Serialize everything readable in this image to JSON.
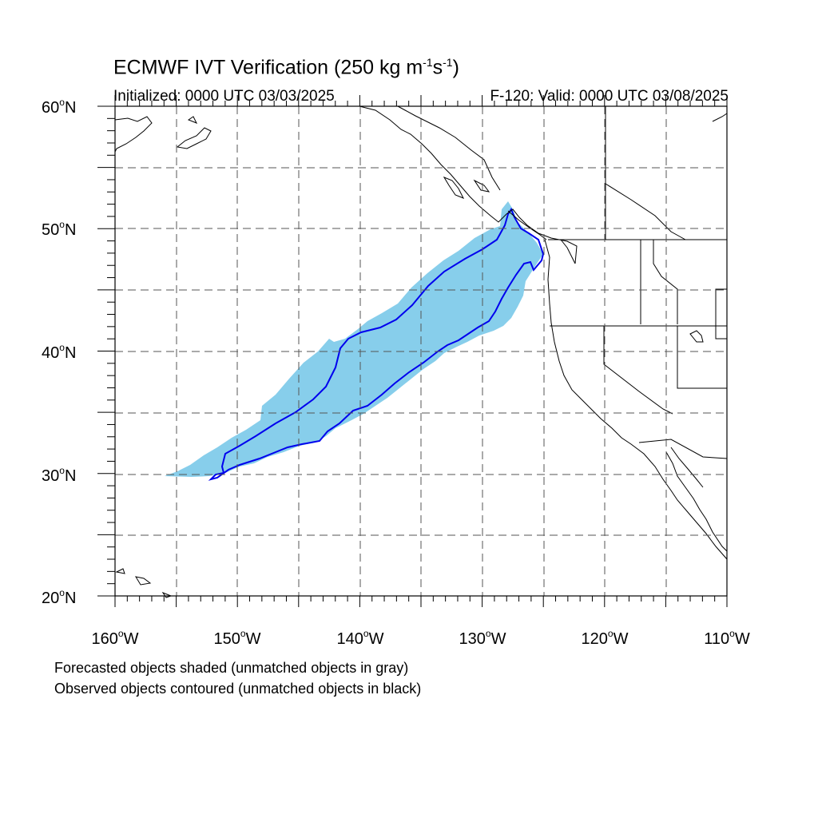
{
  "header": {
    "title_main": "ECMWF IVT Verification (250 kg m",
    "title_exp1": "-1",
    "title_mid": "s",
    "title_exp2": "-1",
    "title_end": ")",
    "initialized": "Initialized: 0000 UTC 03/03/2025",
    "valid": "F-120: Valid: 0000 UTC 03/08/2025"
  },
  "axes": {
    "lat_labels": [
      "60",
      "50",
      "40",
      "30",
      "20"
    ],
    "lat_suffix": "N",
    "lon_labels": [
      "160",
      "150",
      "140",
      "130",
      "120",
      "110"
    ],
    "lon_suffix": "W",
    "degree_symbol": "o"
  },
  "legend": {
    "line1": "Forecasted objects shaded (unmatched objects in gray)",
    "line2": "Observed objects contoured (unmatched objects in black)"
  },
  "colors": {
    "forecast_fill": "#87ceeb",
    "observed_contour": "#0000ee",
    "coastline": "#000000",
    "grid": "#555555"
  }
}
